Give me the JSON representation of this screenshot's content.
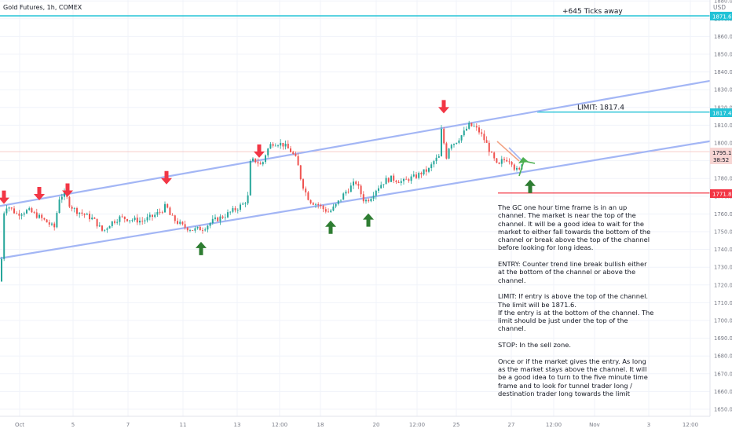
{
  "header": {
    "symbol": "Gold Futures, 1h, COMEX",
    "currency": "USD"
  },
  "annotations": {
    "ticks_away": "+645 Ticks away",
    "limit": "LIMIT: 1817.4"
  },
  "notes": [
    "The GC one hour time frame is in an up channel. The market is near the top of the channel. It will be a good idea to wait for the market to either fall towards the bottom of the channel or break above the top of the channel before looking for long ideas.",
    "ENTRY: Counter trend line break bullish either at the bottom of the channel or above the channel.",
    "LIMIT: If entry is above the top of the channel.\nThe limit will be 1871.6.\nIf the entry is at the bottom of the channel. The limit should be just under the top of the channel.",
    "STOP: In the sell zone.",
    "Once or if the market gives the entry. As long as the market stays above the channel. It will be a good idea to turn to the five minute time frame and to look for tunnel trader long / destination trader long towards the limit"
  ],
  "price_tags": {
    "upper_level": "1871.6",
    "limit_level": "1817.4",
    "last_price": "1795.1",
    "countdown": "38:52",
    "stop_level": "1771.8"
  },
  "colors": {
    "up": "#26a69a",
    "down": "#ef5350",
    "channel": "#a3b6f5",
    "cyan_line": "#22c2d6",
    "stop_line": "#f23645",
    "arrow_down": "#f23645",
    "arrow_up": "#2e7d32",
    "grid": "#f0f3fa",
    "axis_text": "#787b86"
  },
  "chart_data": {
    "type": "candlestick",
    "title": "Gold Futures, 1h, COMEX",
    "y_axis": {
      "ylim": [
        1645,
        1885
      ],
      "ticks": [
        "1650.0",
        "1660.0",
        "1670.0",
        "1680.0",
        "1690.0",
        "1700.0",
        "1710.0",
        "1720.0",
        "1730.0",
        "1740.0",
        "1750.0",
        "1760.0",
        "1770.0",
        "1780.0",
        "1790.0",
        "1800.0",
        "1810.0",
        "1820.0",
        "1830.0",
        "1840.0",
        "1850.0",
        "1860.0",
        "1870.0",
        "1880.0"
      ]
    },
    "x_axis": {
      "ticks": [
        "Oct",
        "5",
        "7",
        "11",
        "13",
        "12:00",
        "18",
        "20",
        "12:00",
        "25",
        "27",
        "12:00",
        "Nov",
        "3",
        "12:00"
      ]
    },
    "price_path": [
      [
        0,
        1722
      ],
      [
        3,
        1760
      ],
      [
        8,
        1765
      ],
      [
        20,
        1760
      ],
      [
        35,
        1762
      ],
      [
        50,
        1758
      ],
      [
        60,
        1755
      ],
      [
        68,
        1752
      ],
      [
        75,
        1770
      ],
      [
        82,
        1771
      ],
      [
        88,
        1765
      ],
      [
        95,
        1762
      ],
      [
        105,
        1760
      ],
      [
        118,
        1757
      ],
      [
        130,
        1750
      ],
      [
        140,
        1755
      ],
      [
        152,
        1758
      ],
      [
        165,
        1757
      ],
      [
        180,
        1756
      ],
      [
        195,
        1759
      ],
      [
        205,
        1762
      ],
      [
        211,
        1765
      ],
      [
        214,
        1760
      ],
      [
        220,
        1757
      ],
      [
        232,
        1753
      ],
      [
        245,
        1751
      ],
      [
        258,
        1752
      ],
      [
        270,
        1756
      ],
      [
        285,
        1759
      ],
      [
        300,
        1763
      ],
      [
        310,
        1766
      ],
      [
        315,
        1770
      ],
      [
        318,
        1790
      ],
      [
        325,
        1790
      ],
      [
        332,
        1787
      ],
      [
        338,
        1795
      ],
      [
        345,
        1800
      ],
      [
        352,
        1800
      ],
      [
        360,
        1799
      ],
      [
        370,
        1795
      ],
      [
        377,
        1790
      ],
      [
        383,
        1778
      ],
      [
        390,
        1770
      ],
      [
        395,
        1767
      ],
      [
        400,
        1766
      ],
      [
        405,
        1765
      ],
      [
        410,
        1763
      ],
      [
        418,
        1761
      ],
      [
        425,
        1764
      ],
      [
        432,
        1768
      ],
      [
        438,
        1772
      ],
      [
        445,
        1775
      ],
      [
        452,
        1778
      ],
      [
        458,
        1772
      ],
      [
        463,
        1767
      ],
      [
        470,
        1769
      ],
      [
        478,
        1774
      ],
      [
        485,
        1777
      ],
      [
        490,
        1779
      ],
      [
        497,
        1780
      ],
      [
        505,
        1779
      ],
      [
        512,
        1778
      ],
      [
        520,
        1780
      ],
      [
        528,
        1781
      ],
      [
        535,
        1783
      ],
      [
        545,
        1785
      ],
      [
        552,
        1790
      ],
      [
        558,
        1792
      ],
      [
        562,
        1812
      ],
      [
        566,
        1790
      ],
      [
        572,
        1800
      ],
      [
        578,
        1800
      ],
      [
        584,
        1803
      ],
      [
        590,
        1806
      ],
      [
        596,
        1810
      ],
      [
        603,
        1809
      ],
      [
        610,
        1806
      ],
      [
        618,
        1800
      ],
      [
        625,
        1793
      ],
      [
        630,
        1789
      ],
      [
        633,
        1786
      ],
      [
        638,
        1790
      ],
      [
        645,
        1791
      ],
      [
        650,
        1790
      ],
      [
        655,
        1785
      ],
      [
        660,
        1784
      ],
      [
        664,
        1790
      ],
      [
        666,
        1794
      ]
    ],
    "x_domain": [
      0,
      666
    ],
    "channel_lines": [
      {
        "name": "upper-channel",
        "from": [
          0,
          1764.5
        ],
        "to": [
          904,
          1835
        ]
      },
      {
        "name": "lower-channel",
        "from": [
          0,
          1735
        ],
        "to": [
          904,
          1801
        ]
      }
    ],
    "horizontal_levels": [
      {
        "name": "upper-level",
        "price": 1871.6,
        "x_from": 0
      },
      {
        "name": "limit-level",
        "price": 1817.4,
        "x_from": 684
      },
      {
        "name": "last-price-level",
        "price": 1795.1,
        "x_from": 0
      },
      {
        "name": "stop-level",
        "price": 1771.8,
        "x_from": 634
      }
    ],
    "down_arrows": [
      [
        5,
        1767
      ],
      [
        50,
        1769
      ],
      [
        86,
        1771
      ],
      [
        212,
        1778
      ],
      [
        330,
        1793
      ],
      [
        565,
        1818
      ]
    ],
    "up_arrows": [
      [
        256,
        1743
      ],
      [
        421,
        1755
      ],
      [
        469,
        1759
      ],
      [
        675,
        1778
      ]
    ]
  }
}
